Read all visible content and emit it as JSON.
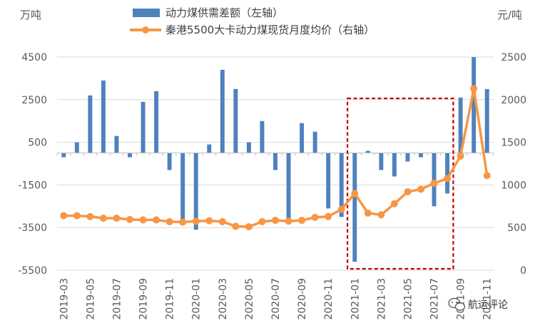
{
  "chart_data": {
    "type": "bar+line",
    "left_unit": "万吨",
    "right_unit": "元/吨",
    "legend": {
      "position": "top"
    },
    "series": [
      {
        "name": "动力煤供需差额（左轴）",
        "type": "bar",
        "axis": "left",
        "color": "#4F81BD",
        "values": [
          -200,
          500,
          2700,
          3400,
          800,
          -200,
          2400,
          2900,
          -800,
          -3300,
          -3600,
          400,
          3900,
          3000,
          500,
          1500,
          -800,
          -3100,
          1400,
          1000,
          -2600,
          -3000,
          -5100,
          100,
          -800,
          -1100,
          -400,
          -200,
          -2500,
          -1900,
          2600,
          4500,
          3000
        ]
      },
      {
        "name": "秦港5500大卡动力煤现货月度均价（右轴）",
        "type": "line",
        "axis": "right",
        "color": "#F79646",
        "values": [
          640,
          640,
          630,
          610,
          610,
          595,
          590,
          590,
          570,
          565,
          575,
          580,
          570,
          515,
          510,
          570,
          585,
          575,
          585,
          620,
          630,
          715,
          900,
          670,
          650,
          780,
          920,
          950,
          1020,
          1075,
          1340,
          2130,
          1110
        ]
      }
    ],
    "x_ticks": [
      "2019-03",
      "2019-05",
      "2019-07",
      "2019-09",
      "2019-11",
      "2020-01",
      "2020-03",
      "2020-05",
      "2020-07",
      "2020-09",
      "2020-11",
      "2021-01",
      "2021-03",
      "2021-05",
      "2021-07",
      "2021-09",
      "2021-11"
    ],
    "y_left": {
      "min": -5500,
      "max": 4500,
      "ticks": [
        4500,
        2500,
        500,
        -1500,
        -3500,
        -5500
      ]
    },
    "y_right": {
      "min": 0,
      "max": 2500,
      "ticks": [
        2500,
        2000,
        1500,
        1000,
        500,
        0
      ]
    },
    "highlight": {
      "from": "2021-01",
      "to": "2021-08",
      "style": "dashed",
      "color": "#C00000"
    }
  },
  "watermark": "航运评论"
}
